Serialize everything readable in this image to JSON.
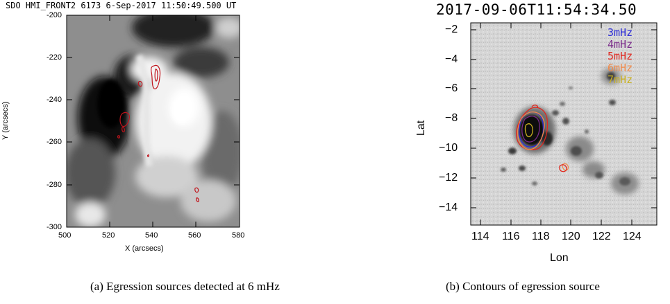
{
  "figure": {
    "left": {
      "title": "SDO HMI_FRONT2 6173  6-Sep-2017 11:50:49.500 UT",
      "caption": "(a) Egression sources detected at 6 mHz",
      "xlabel": "X (arcsecs)",
      "ylabel": "Y (arcsecs)",
      "xticks": [
        "500",
        "520",
        "540",
        "560",
        "580"
      ],
      "yticks": [
        "-200",
        "-220",
        "-240",
        "-260",
        "-280",
        "-300"
      ]
    },
    "right": {
      "title": "2017-09-06T11:54:34.50",
      "caption": "(b) Contours of egression source",
      "xlabel": "Lon",
      "ylabel": "Lat",
      "xticks": [
        "114",
        "116",
        "118",
        "120",
        "122",
        "124"
      ],
      "yticks": [
        "−2",
        "−4",
        "−6",
        "−8",
        "−10",
        "−12",
        "−14"
      ],
      "legend": [
        {
          "label": "3mHz",
          "color": "#2b2bd6"
        },
        {
          "label": "4mHz",
          "color": "#7a2a8a"
        },
        {
          "label": "5mHz",
          "color": "#e0261e"
        },
        {
          "label": "6mHz",
          "color": "#f08a4a"
        },
        {
          "label": "7mHz",
          "color": "#c8b020"
        }
      ]
    }
  },
  "colors": {
    "contour_red": "#c0141c",
    "background_gray": "#8c8c8c"
  }
}
